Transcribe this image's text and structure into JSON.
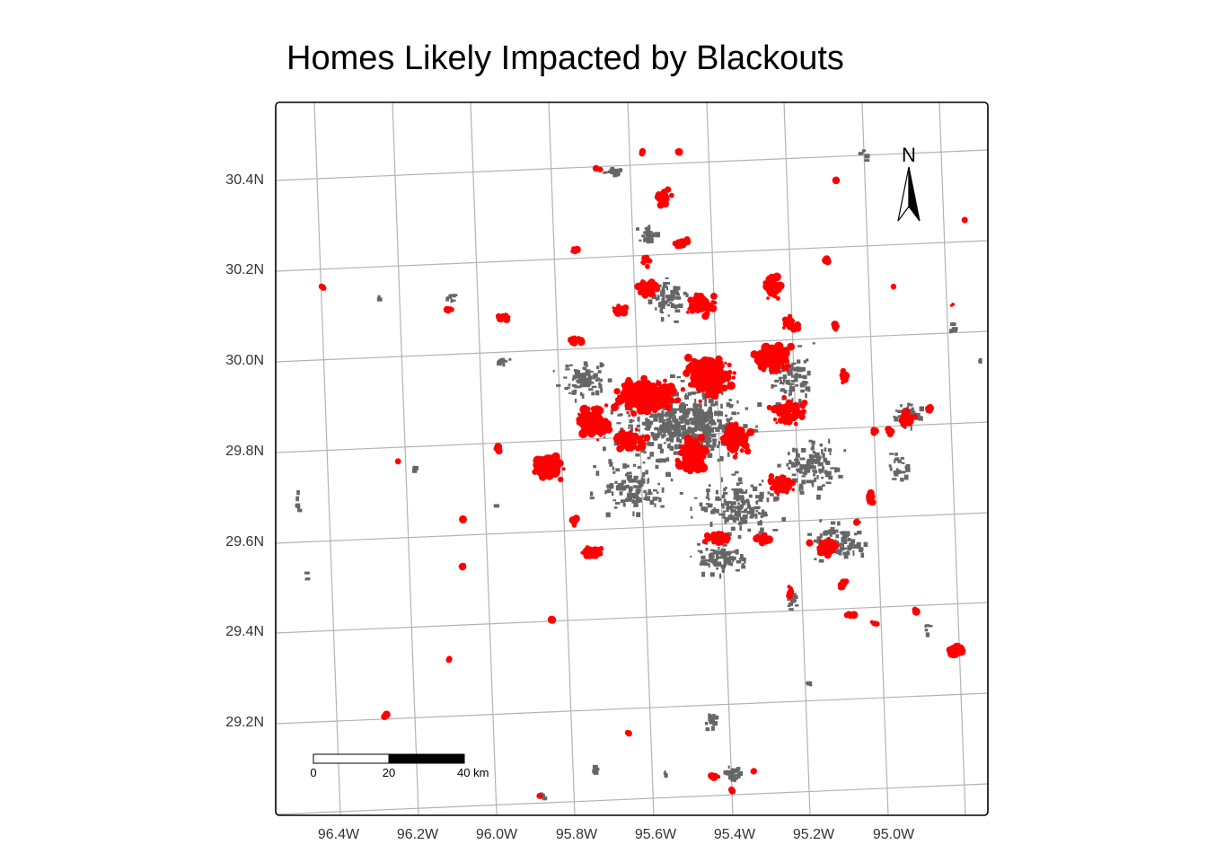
{
  "title": "Homes Likely Impacted by Blackouts",
  "colors": {
    "background": "#ffffff",
    "frame": "#000000",
    "graticule": "#b3b3b3",
    "homes_all": "#666666",
    "homes_impacted": "#ff0000"
  },
  "axes": {
    "lat_labels": [
      "30.4N",
      "30.2N",
      "30.0N",
      "29.8N",
      "29.6N",
      "29.4N",
      "29.2N"
    ],
    "lon_labels": [
      "96.4W",
      "96.2W",
      "96.0W",
      "95.8W",
      "95.6W",
      "95.4W",
      "95.2W",
      "95.0W"
    ]
  },
  "scale_bar": {
    "labels": [
      "0",
      "20",
      "40 km"
    ]
  },
  "north_arrow": {
    "label": "N"
  },
  "legend": []
}
